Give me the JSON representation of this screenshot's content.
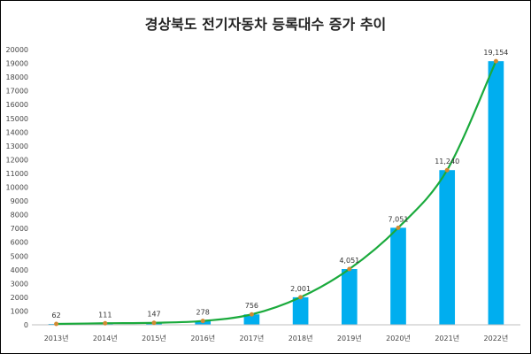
{
  "chart_data": {
    "type": "bar",
    "title": "경상북도 전기자동차 등록대수 증가 추이",
    "categories": [
      "2013년",
      "2014년",
      "2015년",
      "2016년",
      "2017년",
      "2018년",
      "2019년",
      "2020년",
      "2021년",
      "2022년"
    ],
    "values": [
      62,
      111,
      147,
      278,
      756,
      2001,
      4051,
      7051,
      11240,
      19154
    ],
    "data_labels": [
      "62",
      "111",
      "147",
      "278",
      "756",
      "2,001",
      "4,051",
      "7,051",
      "11,240",
      "19,154"
    ],
    "ylim": [
      0,
      20000
    ],
    "yticks": [
      "0",
      "1000",
      "2000",
      "3000",
      "4000",
      "5000",
      "6000",
      "7000",
      "8000",
      "9000",
      "10000",
      "11000",
      "12000",
      "13000",
      "14000",
      "15000",
      "16000",
      "17000",
      "18000",
      "19000",
      "20000"
    ],
    "ytick_values": [
      0,
      1000,
      2000,
      3000,
      4000,
      5000,
      6000,
      7000,
      8000,
      9000,
      10000,
      11000,
      12000,
      13000,
      14000,
      15000,
      16000,
      17000,
      18000,
      19000,
      20000
    ],
    "grid": false,
    "legend": "none",
    "overlay": "smoothed trend line with markers at each bar value",
    "colors": {
      "bar": "#00aeef",
      "line": "#1aaa3c",
      "marker": "#d08a32",
      "axis": "#bfbfbf"
    }
  }
}
